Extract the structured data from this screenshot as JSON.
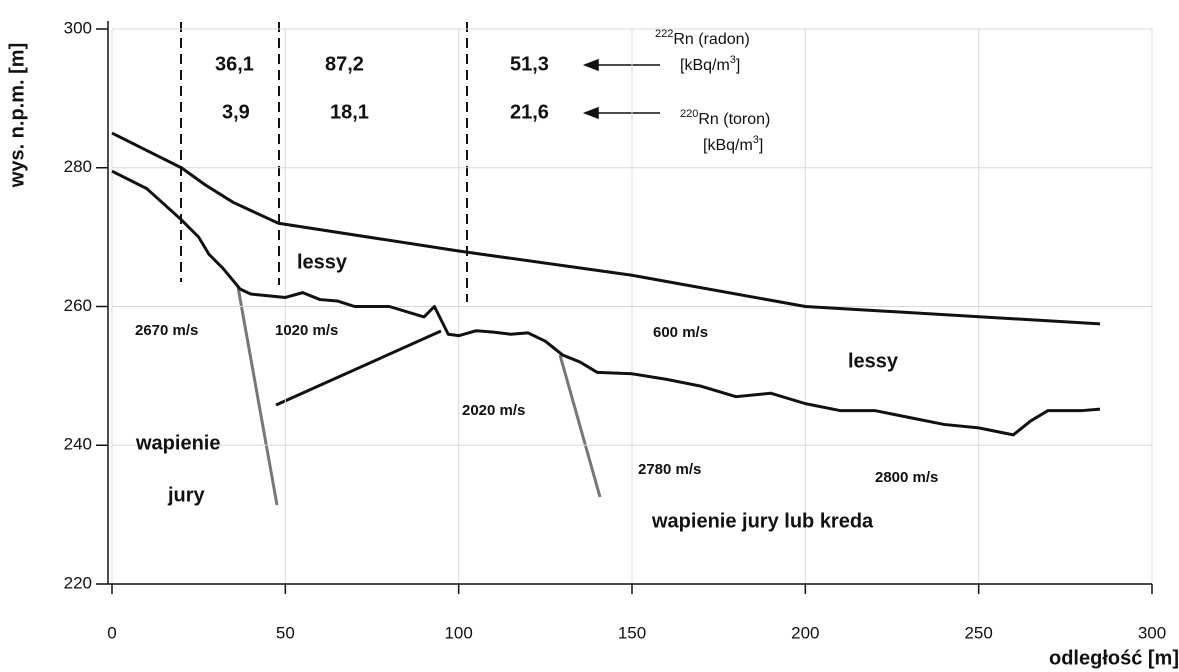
{
  "chart_data": {
    "type": "line",
    "xlabel": "odległość [m]",
    "ylabel": "wys. n.p.m. [m]",
    "xlim": [
      0,
      300
    ],
    "xticks": [
      0,
      50,
      100,
      150,
      200,
      250,
      300
    ],
    "ylim": [
      220,
      300
    ],
    "yticks": [
      220,
      240,
      260,
      280,
      300
    ],
    "grid": true,
    "series": [
      {
        "color": "#111111",
        "x": [
          0,
          10,
          20,
          27,
          35,
          48,
          100,
          150,
          200,
          285
        ],
        "values": [
          285,
          282.5,
          280,
          277.5,
          275,
          272,
          268,
          264.5,
          260,
          257.5
        ]
      },
      {
        "color": "#111111",
        "x": [
          0,
          10,
          20,
          25,
          28,
          32,
          37,
          40,
          50,
          55,
          60,
          65,
          70,
          80,
          90,
          93,
          97,
          100,
          105,
          110,
          115,
          120,
          125,
          130,
          135,
          140,
          150,
          160,
          170,
          180,
          190,
          200,
          210,
          220,
          230,
          240,
          250,
          260,
          265,
          270,
          280,
          285
        ],
        "values": [
          279.5,
          277,
          272.5,
          270,
          267.5,
          265.5,
          262.5,
          261.8,
          261.3,
          262,
          261,
          260.8,
          260,
          260,
          258.5,
          260,
          256,
          255.8,
          256.5,
          256.3,
          256,
          256.2,
          255,
          253,
          252,
          250.5,
          250.3,
          249.5,
          248.5,
          247,
          247.5,
          246,
          245,
          245,
          244,
          243,
          242.5,
          241.5,
          243.5,
          245,
          245,
          245.2
        ]
      }
    ],
    "velocities": [
      "2670 m/s",
      "1020 m/s",
      "600 m/s",
      "2020 m/s",
      "2780 m/s",
      "2800 m/s"
    ],
    "layers": [
      "lessy",
      "lessy",
      "wapienie",
      "jury",
      "wapienie jury lub kreda"
    ],
    "concentrations": [
      [
        "36,1",
        "87,2",
        "51,3"
      ],
      [
        "3,9",
        "18,1",
        "21,6"
      ]
    ],
    "legend": [
      {
        "isotope": "222",
        "name": "Rn (radon)",
        "unit": "[kBq/m",
        "unit_exp": "3",
        "unit_end": "]"
      },
      {
        "isotope": "220",
        "name": "Rn (toron)",
        "unit": "[kBq/m",
        "unit_exp": "3",
        "unit_end": "]"
      }
    ]
  }
}
